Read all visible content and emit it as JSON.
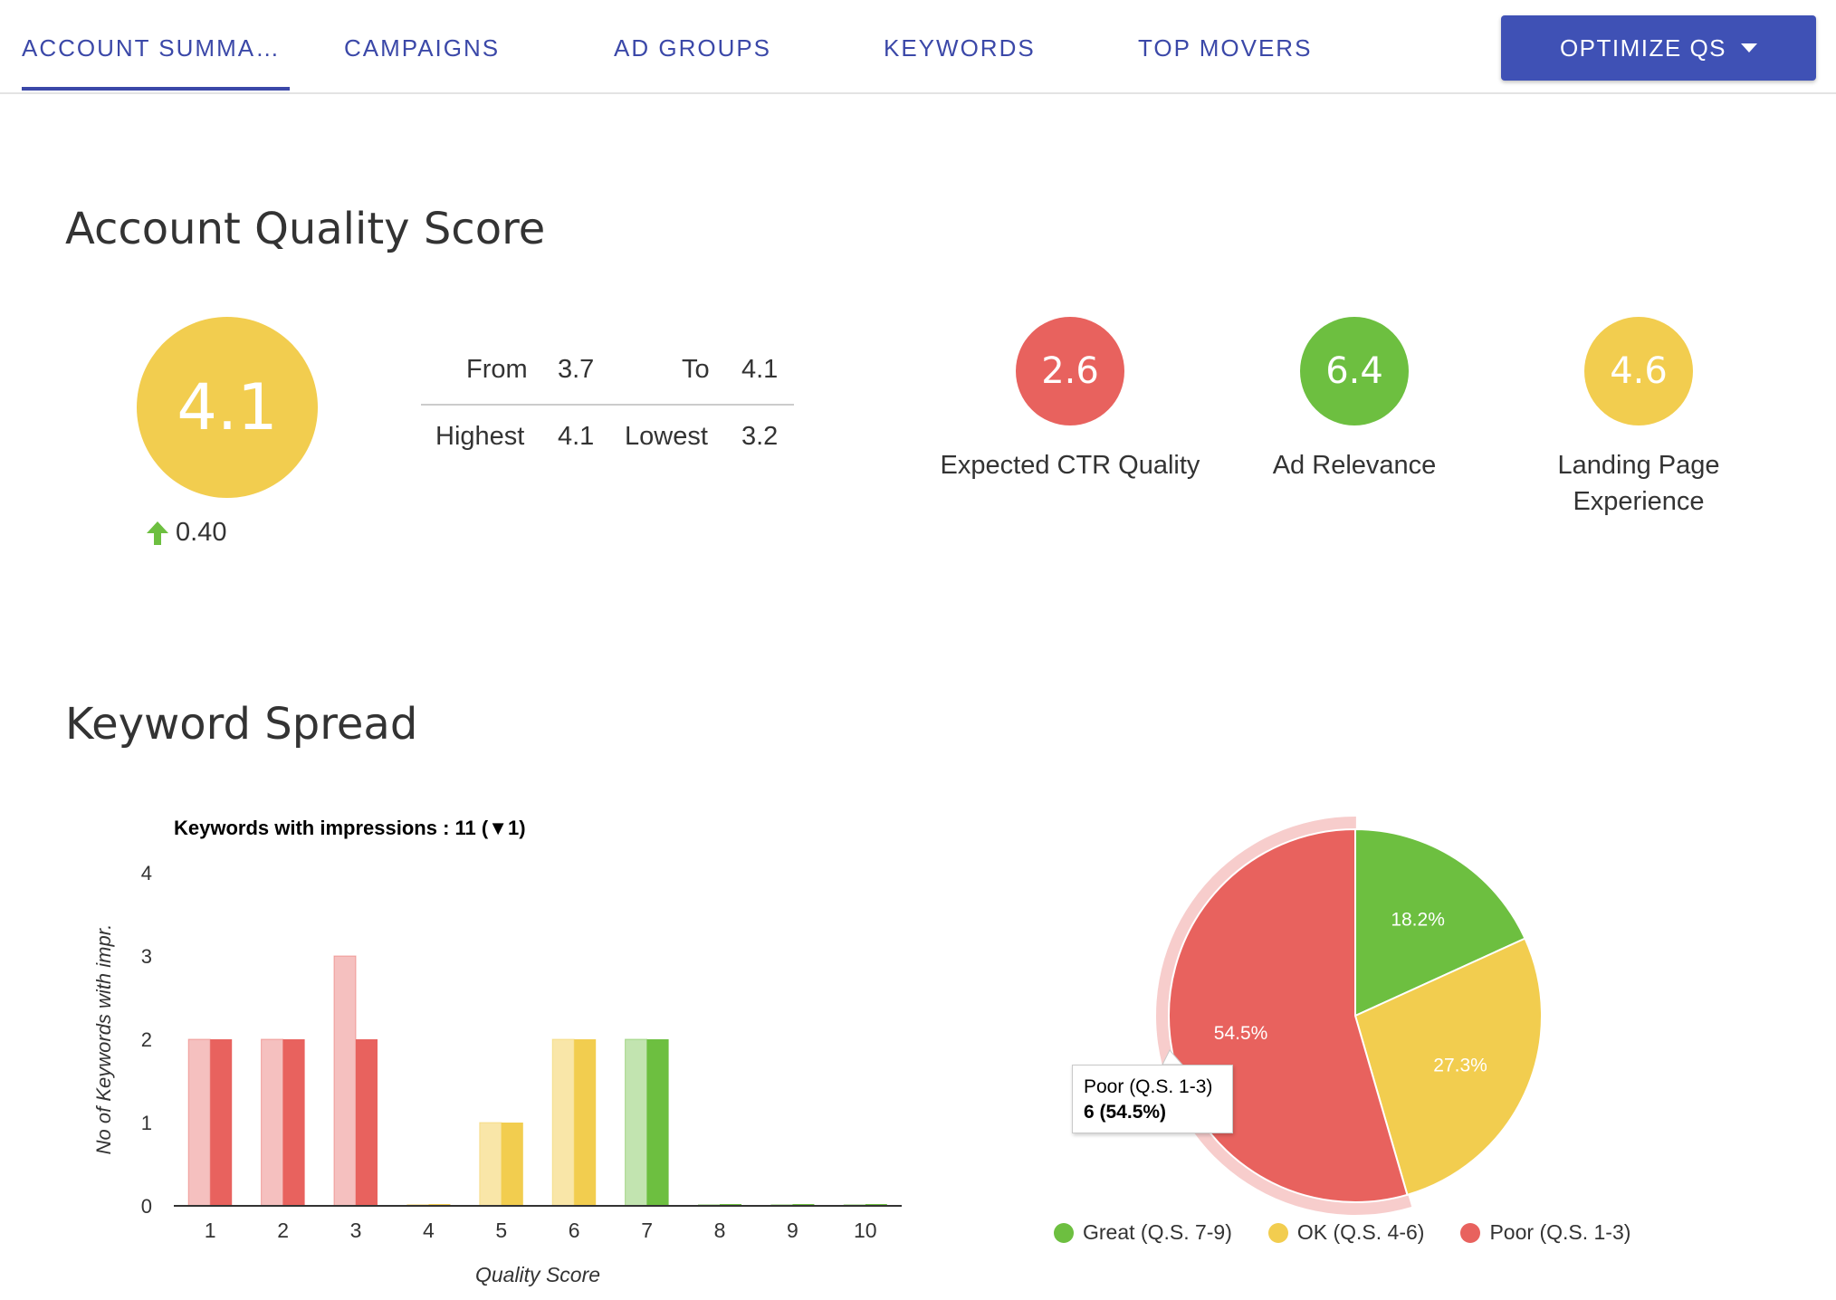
{
  "nav": {
    "tabs": [
      {
        "label": "ACCOUNT SUMMA…",
        "active": true
      },
      {
        "label": "CAMPAIGNS",
        "active": false
      },
      {
        "label": "AD GROUPS",
        "active": false
      },
      {
        "label": "KEYWORDS",
        "active": false
      },
      {
        "label": "TOP MOVERS",
        "active": false
      }
    ],
    "optimize_button": "OPTIMIZE QS",
    "accent_color": "#3f51b5"
  },
  "quality": {
    "title": "Account Quality Score",
    "score": "4.1",
    "score_color": "#f2cd4f",
    "delta": "0.40",
    "delta_icon": "arrow-up-icon",
    "stats": {
      "from_label": "From",
      "from_value": "3.7",
      "to_label": "To",
      "to_value": "4.1",
      "highest_label": "Highest",
      "highest_value": "4.1",
      "lowest_label": "Lowest",
      "lowest_value": "3.2"
    },
    "metrics": [
      {
        "value": "2.6",
        "label": "Expected CTR Quality",
        "color": "#e8625e"
      },
      {
        "value": "6.4",
        "label": "Ad Relevance",
        "color": "#6dbf40"
      },
      {
        "value": "4.6",
        "label_line1": "Landing Page",
        "label_line2": "Experience",
        "color": "#f2cd4f"
      }
    ]
  },
  "spread": {
    "title": "Keyword Spread"
  },
  "chart_data": [
    {
      "type": "bar",
      "title": "Keywords with impressions : 11 (▼1)",
      "xlabel": "Quality Score",
      "ylabel": "No of Keywords with impr.",
      "categories": [
        "1",
        "2",
        "3",
        "4",
        "5",
        "6",
        "7",
        "8",
        "9",
        "10"
      ],
      "yticks": [
        "0",
        "1",
        "2",
        "3",
        "4"
      ],
      "ylim": [
        0,
        4
      ],
      "series": [
        {
          "values": [
            2,
            2,
            3,
            0,
            1,
            2,
            2,
            0,
            0,
            0
          ]
        },
        {
          "values": [
            2,
            2,
            2,
            0,
            1,
            2,
            2,
            0,
            0,
            0
          ]
        }
      ],
      "colors": {
        "poor": "#e8625e",
        "poor_light": "#f5c0bf",
        "ok": "#f2cd4f",
        "ok_light": "#f9e6a8",
        "great": "#6dbf40",
        "great_light": "#c2e4b0"
      },
      "grid": false
    },
    {
      "type": "pie",
      "slices": [
        {
          "name": "Great (Q.S. 7-9)",
          "value": 18.2,
          "label": "18.2%",
          "color": "#6dbf40"
        },
        {
          "name": "OK (Q.S. 4-6)",
          "value": 27.3,
          "label": "27.3%",
          "color": "#f2cd4f"
        },
        {
          "name": "Poor (Q.S. 1-3)",
          "value": 54.5,
          "label": "54.5%",
          "color": "#e8625e"
        }
      ],
      "tooltip": {
        "title": "Poor (Q.S. 1-3)",
        "value": "6 (54.5%)"
      },
      "legend_position": "bottom"
    }
  ]
}
